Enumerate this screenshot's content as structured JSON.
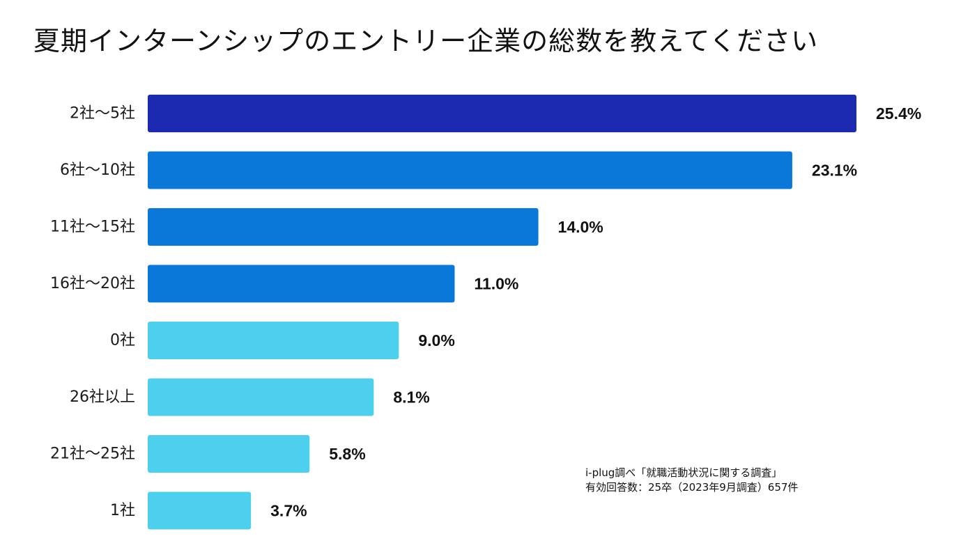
{
  "chart_data": {
    "type": "bar",
    "orientation": "horizontal",
    "title": "夏期インターンシップのエントリー企業の総数を教えてください",
    "categories": [
      "2社〜5社",
      "6社〜10社",
      "11社〜15社",
      "16社〜20社",
      "0社",
      "26社以上",
      "21社〜25社",
      "1社"
    ],
    "values": [
      25.4,
      23.1,
      14.0,
      11.0,
      9.0,
      8.1,
      5.8,
      3.7
    ],
    "value_labels": [
      "25.4%",
      "23.1%",
      "14.0%",
      "11.0%",
      "9.0%",
      "8.1%",
      "5.8%",
      "3.7%"
    ],
    "colors": [
      "#1b2ab0",
      "#0a78d8",
      "#0a78d8",
      "#0a78d8",
      "#4dd0ee",
      "#4dd0ee",
      "#4dd0ee",
      "#4dd0ee"
    ],
    "xlim": [
      0,
      25.4
    ],
    "grid": false,
    "xlabel": "",
    "ylabel": ""
  },
  "source": {
    "line1": "i-plug調べ「就職活動状況に関する調査」",
    "line2": "有効回答数：25卒（2023年9月調査）657件"
  }
}
